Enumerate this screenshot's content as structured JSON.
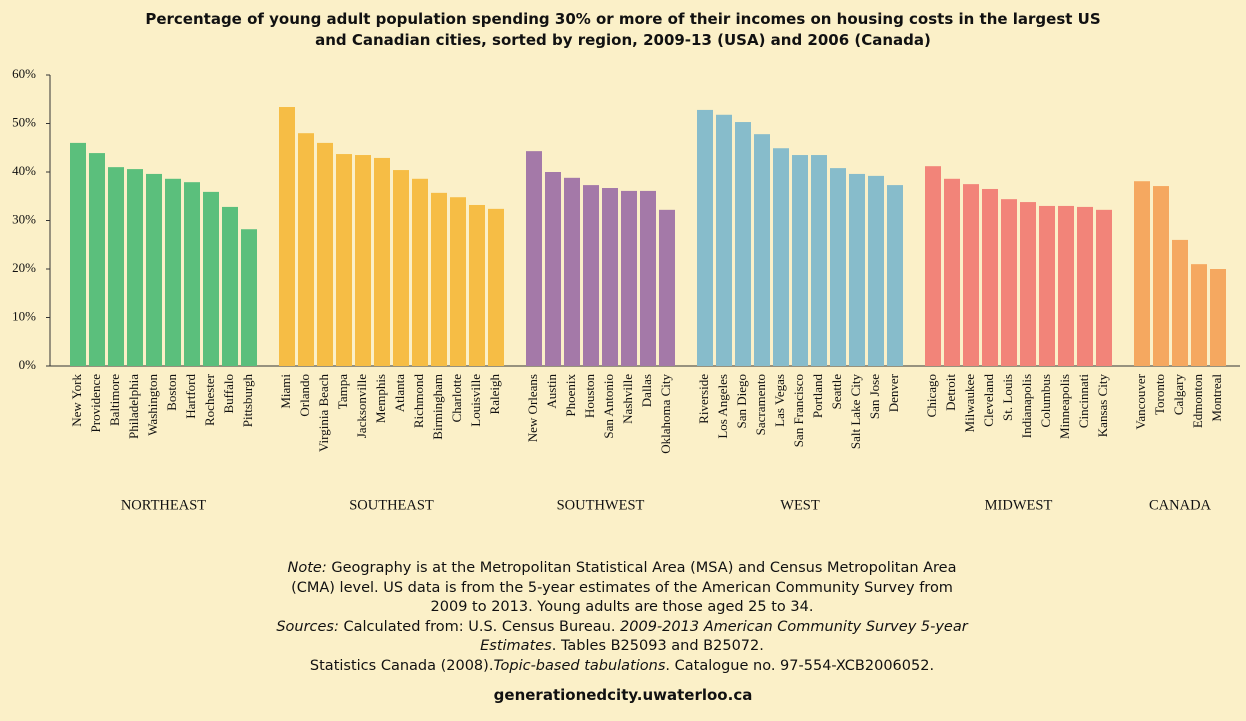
{
  "chart_data": {
    "type": "bar",
    "title": "Percentage of young adult population spending 30% or more of their incomes on housing costs in the largest US and Canadian cities, sorted by region, 2009-13 (USA) and 2006 (Canada)",
    "ylim": [
      0,
      60
    ],
    "yticks": [
      {
        "value": 0,
        "label": "0%"
      },
      {
        "value": 10,
        "label": "10%"
      },
      {
        "value": 20,
        "label": "20%"
      },
      {
        "value": 30,
        "label": "30%"
      },
      {
        "value": 40,
        "label": "40%"
      },
      {
        "value": 50,
        "label": "50%"
      },
      {
        "value": 60,
        "label": "60%"
      }
    ],
    "groups": [
      {
        "name": "NORTHEAST",
        "color": "#5bbf7c",
        "categories": [
          "New York",
          "Providence",
          "Baltimore",
          "Philadelphia",
          "Washington",
          "Boston",
          "Hartford",
          "Rochester",
          "Buffalo",
          "Pittsburgh"
        ],
        "values": [
          46.0,
          43.9,
          41.0,
          40.6,
          39.6,
          38.6,
          37.9,
          35.9,
          32.8,
          28.2
        ]
      },
      {
        "name": "SOUTHEAST",
        "color": "#f6bd45",
        "categories": [
          "Miami",
          "Orlando",
          "Virginia Beach",
          "Tampa",
          "Jacksonville",
          "Memphis",
          "Atlanta",
          "Richmond",
          "Birmingham",
          "Charlotte",
          "Louisville",
          "Raleigh"
        ],
        "values": [
          53.4,
          48.0,
          46.0,
          43.7,
          43.5,
          42.9,
          40.4,
          38.6,
          35.7,
          34.8,
          33.2,
          32.4
        ]
      },
      {
        "name": "SOUTHWEST",
        "color": "#a479a8",
        "categories": [
          "New Orleans",
          "Austin",
          "Phoenix",
          "Houston",
          "San Antonio",
          "Nashville",
          "Dallas",
          "Oklahoma City"
        ],
        "values": [
          44.3,
          40.0,
          38.8,
          37.3,
          36.7,
          36.1,
          36.1,
          32.2
        ]
      },
      {
        "name": "WEST",
        "color": "#87bccb",
        "categories": [
          "Riverside",
          "Los Angeles",
          "San Diego",
          "Sacramento",
          "Las Vegas",
          "San Francisco",
          "Portland",
          "Seattle",
          "Salt Lake City",
          "San Jose",
          "Denver"
        ],
        "values": [
          52.8,
          51.8,
          50.3,
          47.8,
          44.9,
          43.5,
          43.5,
          40.8,
          39.6,
          39.2,
          37.3
        ]
      },
      {
        "name": "MIDWEST",
        "color": "#f28479",
        "categories": [
          "Chicago",
          "Detroit",
          "Milwaukee",
          "Cleveland",
          "St. Louis",
          "Indianapolis",
          "Columbus",
          "Minneapolis",
          "Cincinnati",
          "Kansas City"
        ],
        "values": [
          41.2,
          38.6,
          37.5,
          36.5,
          34.4,
          33.8,
          33.0,
          33.0,
          32.8,
          32.2
        ]
      },
      {
        "name": "CANADA",
        "color": "#f5a860",
        "categories": [
          "Vancouver",
          "Toronto",
          "Calgary",
          "Edmonton",
          "Montreal"
        ],
        "values": [
          38.1,
          37.1,
          26.0,
          21.0,
          20.0
        ]
      }
    ],
    "notes": [
      [
        {
          "text": "Note:",
          "italic": true
        },
        {
          "text": " Geography is at the Metropolitan Statistical Area (MSA) and Census Metropolitan Area (CMA) level. US data is from the 5-year estimates of the American Community Survey from 2009 to 2013. Young adults are those aged 25 to 34.",
          "italic": false
        }
      ],
      [
        {
          "text": "Sources:",
          "italic": true
        },
        {
          "text": " Calculated from: U.S. Census Bureau. ",
          "italic": false
        },
        {
          "text": "2009-2013 American Community Survey 5-year Estimates",
          "italic": true
        },
        {
          "text": ". Tables B25093 and B25072.",
          "italic": false
        }
      ],
      [
        {
          "text": "Statistics Canada (2008).",
          "italic": false
        },
        {
          "text": "Topic-based tabulations",
          "italic": true
        },
        {
          "text": ". Catalogue no. 97-554-XCB2006052.",
          "italic": false
        }
      ]
    ],
    "footer": "generationedcity.uwaterloo.ca"
  }
}
